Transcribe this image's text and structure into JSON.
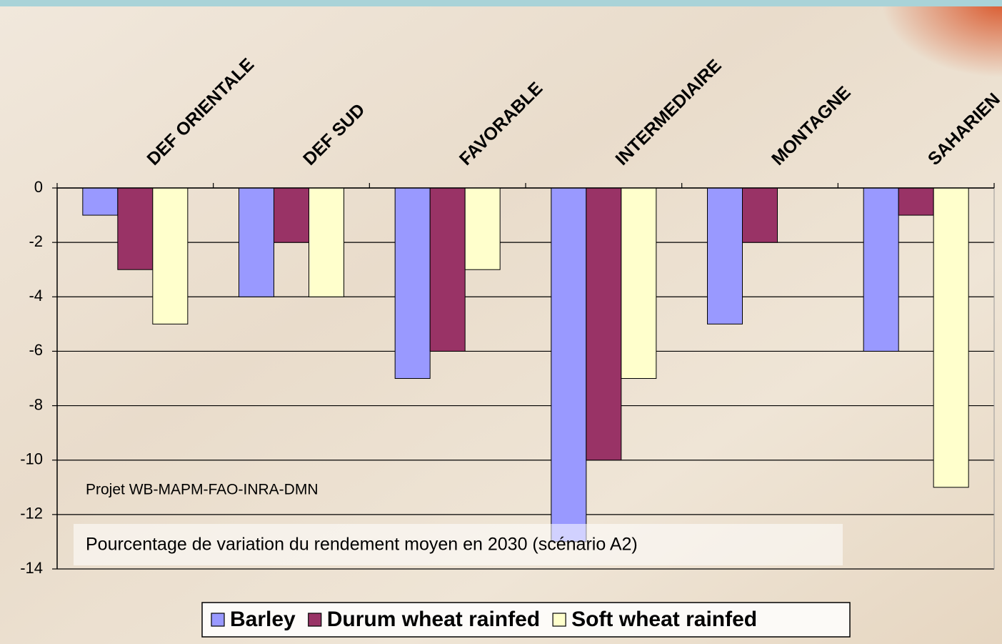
{
  "chart_data": {
    "type": "bar",
    "categories": [
      "DEF ORIENTALE",
      "DEF SUD",
      "FAVORABLE",
      "INTERMEDIAIRE",
      "MONTAGNE",
      "SAHARIEN"
    ],
    "series": [
      {
        "name": "Barley",
        "color": "#9999ff",
        "values": [
          -1,
          -4,
          -7,
          -13,
          -5,
          -6
        ]
      },
      {
        "name": "Durum wheat rainfed",
        "color": "#993366",
        "values": [
          -3,
          -2,
          -6,
          -10,
          -2,
          -1
        ]
      },
      {
        "name": "Soft wheat rainfed",
        "color": "#ffffcc",
        "values": [
          -5,
          -4,
          -3,
          -7,
          null,
          -11
        ]
      }
    ],
    "ylim": [
      -14,
      0
    ],
    "yticks": [
      0,
      -2,
      -4,
      -6,
      -8,
      -10,
      -12,
      -14
    ],
    "grid": true,
    "annotations": [
      "Projet WB-MAPM-FAO-INRA-DMN",
      "Pourcentage de variation du rendement moyen en 2030 (scénario A2)"
    ]
  }
}
